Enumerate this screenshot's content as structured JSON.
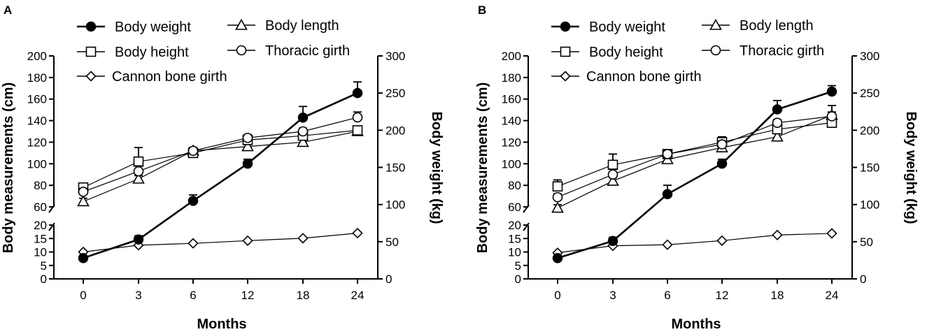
{
  "chart_data": [
    {
      "type": "line",
      "panel_label": "A",
      "categories": [
        "0",
        "3",
        "6",
        "12",
        "18",
        "24"
      ],
      "xlabel": "Months",
      "ylabel_left": "Body measurements (cm)",
      "ylabel_right": "Body weight (kg)",
      "left_axis": {
        "lower_ticks": [
          0,
          5,
          10,
          15,
          20
        ],
        "upper_ticks": [
          60,
          80,
          100,
          120,
          140,
          160,
          180,
          200
        ],
        "lower_range": [
          0,
          20
        ],
        "upper_range": [
          60,
          200
        ],
        "break": true
      },
      "right_axis": {
        "ticks": [
          0,
          50,
          100,
          150,
          200,
          250,
          300
        ],
        "range": [
          0,
          300
        ]
      },
      "legend": [
        "Body weight",
        "Body length",
        "Body height",
        "Thoracic girth",
        "Cannon bone girth"
      ],
      "series": [
        {
          "name": "Body weight",
          "axis": "right",
          "marker": "filled-circle",
          "values": [
            28,
            53,
            105,
            155,
            217,
            250
          ],
          "errors": [
            0,
            5,
            8,
            6,
            15,
            15
          ]
        },
        {
          "name": "Body length",
          "axis": "left",
          "marker": "triangle",
          "values": [
            65,
            86,
            112,
            116,
            120,
            130
          ],
          "errors": [
            3,
            3,
            3,
            3,
            3,
            3
          ]
        },
        {
          "name": "Body height",
          "axis": "left",
          "marker": "square",
          "values": [
            78,
            102,
            110,
            122,
            126,
            131
          ],
          "errors": [
            4,
            13,
            3,
            3,
            3,
            3
          ]
        },
        {
          "name": "Thoracic girth",
          "axis": "left",
          "marker": "open-circle",
          "values": [
            74,
            93,
            112,
            124,
            130,
            143
          ],
          "errors": [
            3,
            5,
            3,
            3,
            3,
            5
          ]
        },
        {
          "name": "Cannon bone girth",
          "axis": "left",
          "marker": "diamond",
          "values": [
            10,
            12.5,
            13.2,
            14.2,
            15.1,
            17
          ],
          "errors": [
            0,
            0,
            0,
            0,
            0,
            0
          ]
        }
      ]
    },
    {
      "type": "line",
      "panel_label": "B",
      "categories": [
        "0",
        "3",
        "6",
        "12",
        "18",
        "24"
      ],
      "xlabel": "Months",
      "ylabel_left": "Body measurements (cm)",
      "ylabel_right": "Body weight (kg)",
      "left_axis": {
        "lower_ticks": [
          0,
          5,
          10,
          15,
          20
        ],
        "upper_ticks": [
          60,
          80,
          100,
          120,
          140,
          160,
          180,
          200
        ],
        "lower_range": [
          0,
          20
        ],
        "upper_range": [
          60,
          200
        ],
        "break": true
      },
      "right_axis": {
        "ticks": [
          0,
          50,
          100,
          150,
          200,
          250,
          300
        ],
        "range": [
          0,
          300
        ]
      },
      "legend": [
        "Body weight",
        "Body length",
        "Body height",
        "Thoracic girth",
        "Cannon bone girth"
      ],
      "series": [
        {
          "name": "Body weight",
          "axis": "right",
          "marker": "filled-circle",
          "values": [
            28,
            51,
            114,
            155,
            228,
            252
          ],
          "errors": [
            0,
            5,
            12,
            6,
            12,
            8
          ]
        },
        {
          "name": "Body length",
          "axis": "left",
          "marker": "triangle",
          "values": [
            59,
            84,
            104,
            115,
            125,
            145
          ],
          "errors": [
            3,
            3,
            3,
            3,
            3,
            3
          ]
        },
        {
          "name": "Body height",
          "axis": "left",
          "marker": "square",
          "values": [
            79,
            99,
            109,
            120,
            132,
            138
          ],
          "errors": [
            6,
            10,
            3,
            5,
            5,
            5
          ]
        },
        {
          "name": "Thoracic girth",
          "axis": "left",
          "marker": "open-circle",
          "values": [
            69,
            90,
            109,
            118,
            138,
            144
          ],
          "errors": [
            3,
            5,
            3,
            3,
            3,
            10
          ]
        },
        {
          "name": "Cannon bone girth",
          "axis": "left",
          "marker": "diamond",
          "values": [
            9.7,
            12.3,
            12.7,
            14.2,
            16.3,
            16.9
          ],
          "errors": [
            0,
            0,
            0,
            0,
            0,
            0
          ]
        }
      ]
    }
  ]
}
